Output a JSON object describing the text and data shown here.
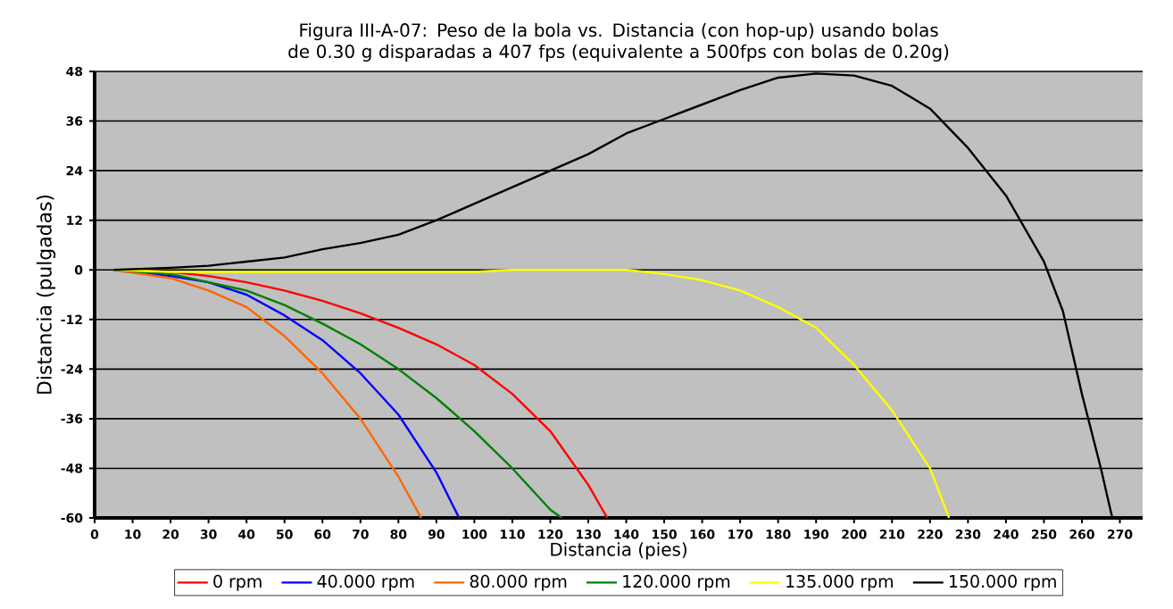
{
  "chart_data": {
    "type": "line",
    "title": "Figura III-A-07: Peso de la bola vs. Distancia (con hop-up) usando bolas de 0.30 g disparadas a 407 fps (equivalente a 500fps con bolas de 0.20g)",
    "xlabel": "Distancia (pies)",
    "ylabel": "Distancia (pulgadas)",
    "xlim": [
      0,
      276
    ],
    "ylim": [
      -60,
      48
    ],
    "xticks": [
      0,
      10,
      20,
      30,
      40,
      50,
      60,
      70,
      80,
      90,
      100,
      110,
      120,
      130,
      140,
      150,
      160,
      170,
      180,
      190,
      200,
      210,
      220,
      230,
      240,
      250,
      260,
      270
    ],
    "yticks": [
      -60,
      -48,
      -36,
      -24,
      -12,
      0,
      12,
      24,
      36,
      48
    ],
    "grid": "y",
    "legend": "bottom",
    "marker": "none",
    "line_style": "solid",
    "series": [
      {
        "name": "0 rpm",
        "color": "#ff0000",
        "x": [
          5,
          20,
          30,
          40,
          50,
          60,
          70,
          80,
          90,
          100,
          110,
          120,
          130,
          135
        ],
        "values": [
          0,
          -0.5,
          -1.5,
          -3,
          -5,
          -7.5,
          -10.5,
          -14,
          -18,
          -23,
          -30,
          -39,
          -52,
          -60
        ]
      },
      {
        "name": "40.000 rpm",
        "color": "#0000ff",
        "x": [
          5,
          20,
          30,
          40,
          50,
          60,
          70,
          80,
          90,
          96
        ],
        "values": [
          0,
          -1.5,
          -3,
          -6,
          -11,
          -17,
          -25,
          -35,
          -49,
          -60
        ]
      },
      {
        "name": "80.000 rpm",
        "color": "#ff6600",
        "x": [
          5,
          20,
          30,
          40,
          50,
          60,
          70,
          80,
          86
        ],
        "values": [
          0,
          -2,
          -5,
          -9,
          -16,
          -25,
          -36,
          -50,
          -60
        ]
      },
      {
        "name": "120.000 rpm",
        "color": "#008000",
        "x": [
          5,
          20,
          30,
          40,
          50,
          60,
          70,
          80,
          90,
          100,
          110,
          120,
          123
        ],
        "values": [
          0,
          -1,
          -3,
          -5,
          -8.5,
          -13,
          -18,
          -24,
          -31,
          -39,
          -48,
          -58,
          -60
        ]
      },
      {
        "name": "135.000 rpm",
        "color": "#ffff00",
        "x": [
          5,
          20,
          50,
          100,
          110,
          140,
          150,
          160,
          170,
          180,
          190,
          200,
          210,
          220,
          225
        ],
        "values": [
          0,
          -0.5,
          -0.5,
          -0.5,
          0,
          0,
          -1,
          -2.5,
          -5,
          -9,
          -14,
          -23,
          -34,
          -48,
          -60
        ]
      },
      {
        "name": "150.000 rpm",
        "color": "#000000",
        "x": [
          5,
          20,
          30,
          40,
          50,
          60,
          70,
          80,
          90,
          100,
          110,
          120,
          130,
          140,
          150,
          160,
          170,
          180,
          190,
          200,
          210,
          220,
          230,
          240,
          250,
          255,
          260,
          265,
          268
        ],
        "values": [
          0,
          0.5,
          1,
          2,
          3,
          5,
          6.5,
          8.5,
          12,
          16,
          20,
          24,
          28,
          33,
          36.5,
          40,
          43.5,
          46.5,
          47.5,
          47,
          44.5,
          39,
          29.5,
          18,
          2,
          -10,
          -30,
          -48,
          -60
        ]
      }
    ]
  }
}
